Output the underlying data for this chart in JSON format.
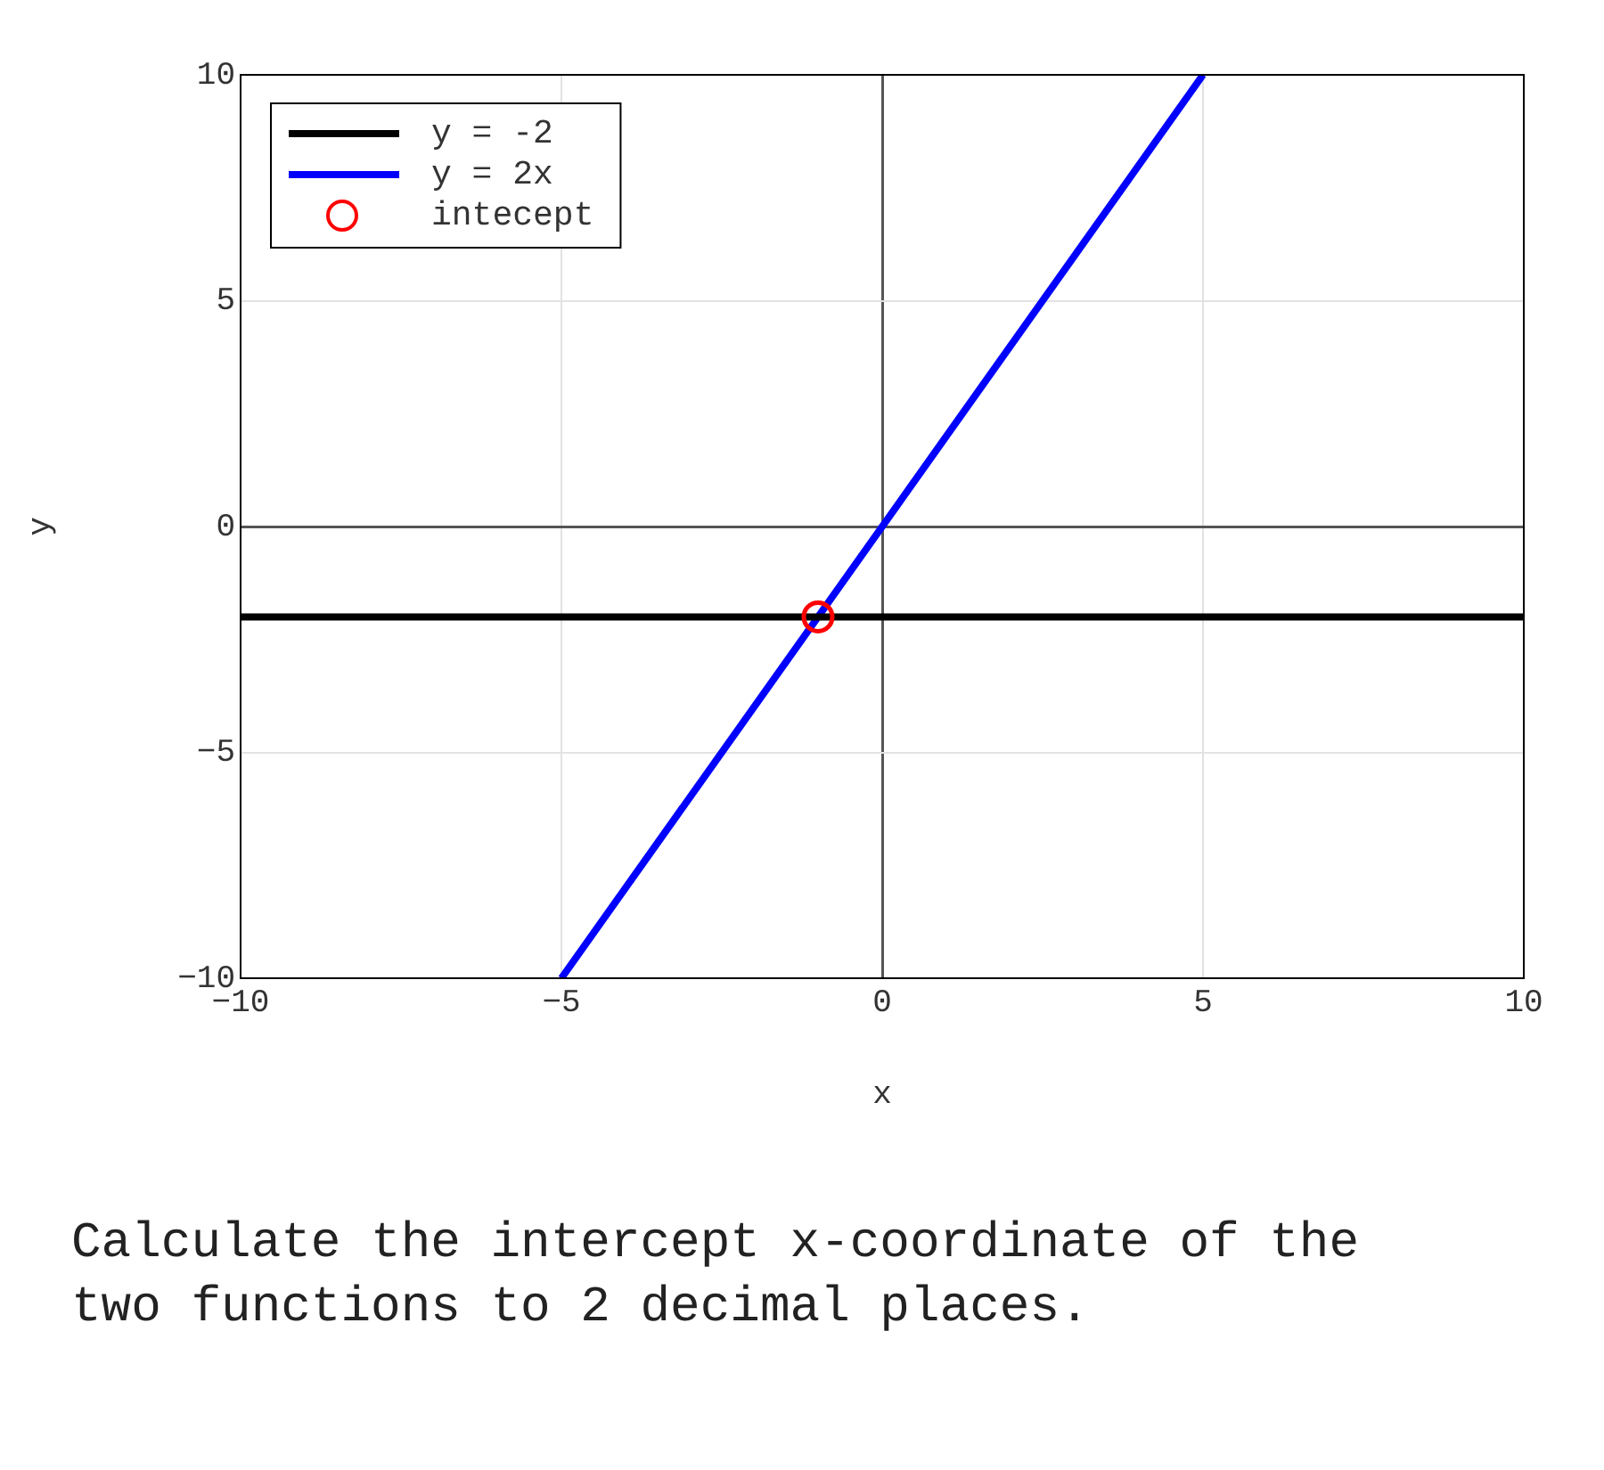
{
  "chart_data": {
    "type": "line",
    "xlabel": "x",
    "ylabel": "y",
    "xlim": [
      -10,
      10
    ],
    "xticks": [
      -10,
      -5,
      0,
      5,
      10
    ],
    "ylim": [
      -10,
      10
    ],
    "yticks": [
      -10,
      -5,
      0,
      5,
      10
    ],
    "grid": true,
    "legend": "top left",
    "series": [
      {
        "name": "y = -2",
        "color": "#000000",
        "x": [
          -10,
          10
        ],
        "values": [
          -2,
          -2
        ],
        "marker": "none"
      },
      {
        "name": "y = 2x",
        "color": "#0000ff",
        "x": [
          -5,
          5
        ],
        "values": [
          -10,
          10
        ],
        "marker": "none"
      },
      {
        "name": "intecept",
        "type": "scatter",
        "color": "#ff0000",
        "x": [
          -1
        ],
        "values": [
          -2
        ],
        "marker": "circle"
      }
    ],
    "annotations": [
      "Calculate the intercept x-coordinate of the two functions to 2 decimal places."
    ]
  }
}
